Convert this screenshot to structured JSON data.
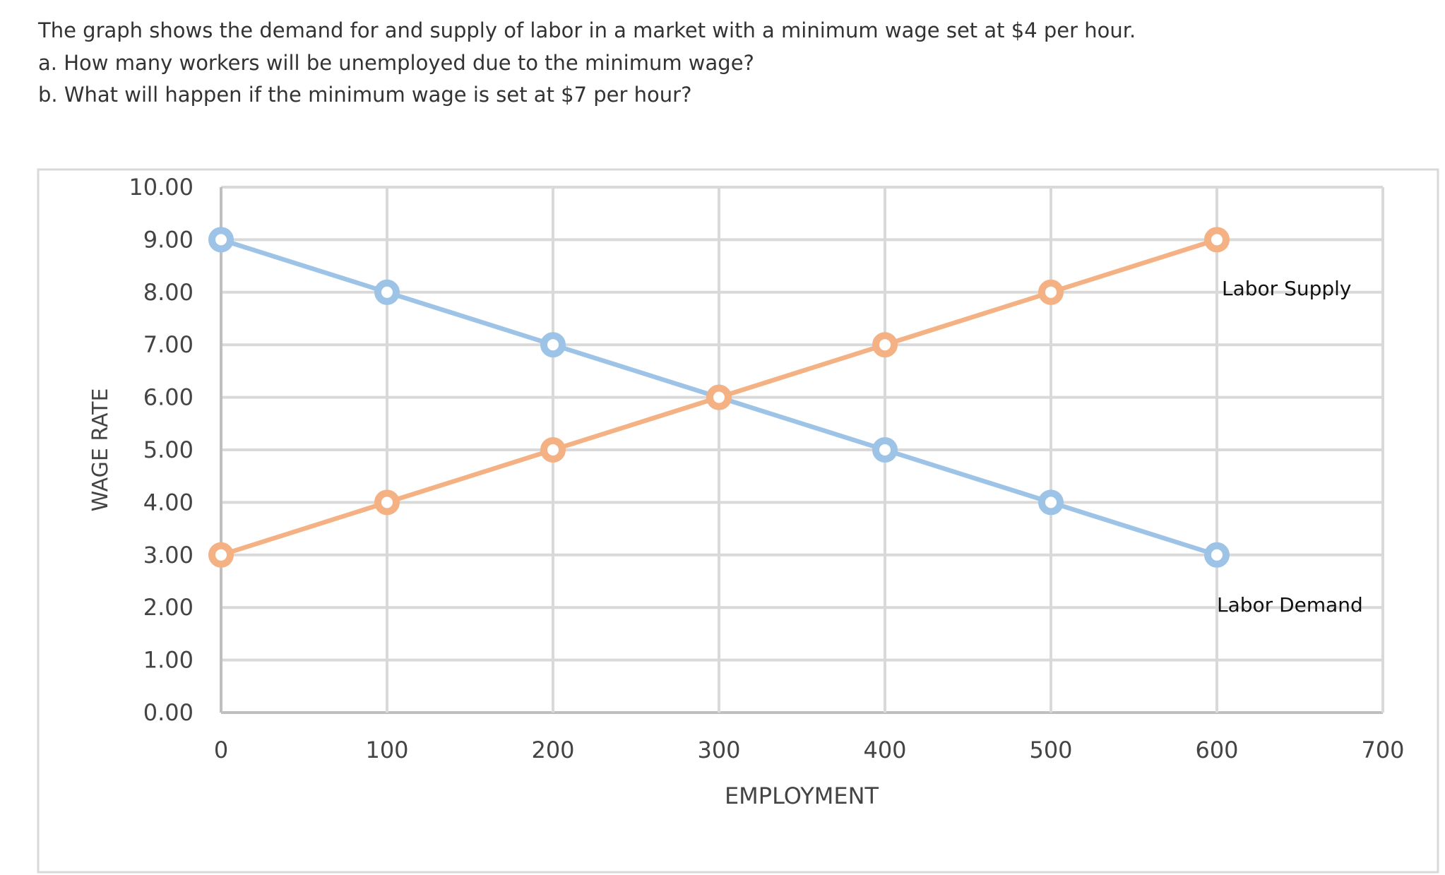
{
  "question": {
    "intro": "The graph shows the demand for and supply of labor in a market with a minimum wage set at $4 per hour.",
    "part_a": "a. How many workers will be unemployed due to the minimum wage?",
    "part_b": "b. What will happen if the minimum wage is set at $7 per hour?"
  },
  "chart_data": {
    "type": "line",
    "title": "",
    "xlabel": "EMPLOYMENT",
    "ylabel": "WAGE RATE",
    "xlim": [
      0,
      700
    ],
    "ylim": [
      0,
      10
    ],
    "x_ticks": [
      "0",
      "100",
      "200",
      "300",
      "400",
      "500",
      "600",
      "700"
    ],
    "y_ticks": [
      "0.00",
      "1.00",
      "2.00",
      "3.00",
      "4.00",
      "5.00",
      "6.00",
      "7.00",
      "8.00",
      "9.00",
      "10.00"
    ],
    "grid": true,
    "series": [
      {
        "name": "Labor Demand",
        "color": "#9dc3e6",
        "x": [
          0,
          100,
          200,
          300,
          400,
          500,
          600
        ],
        "y": [
          9,
          8,
          7,
          6,
          5,
          4,
          3
        ]
      },
      {
        "name": "Labor Supply",
        "color": "#f4b183",
        "x": [
          0,
          100,
          200,
          300,
          400,
          500,
          600
        ],
        "y": [
          3,
          4,
          5,
          6,
          7,
          8,
          9
        ]
      }
    ]
  }
}
